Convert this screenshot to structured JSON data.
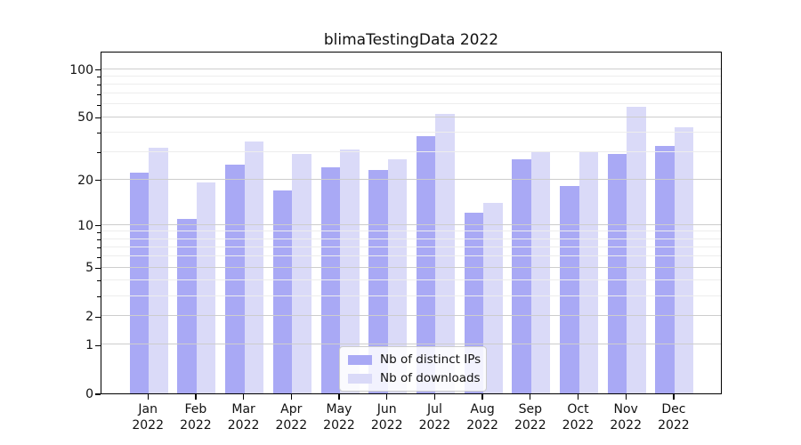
{
  "title": "blimaTestingData 2022",
  "chart_data": {
    "type": "bar",
    "title": "blimaTestingData 2022",
    "xlabel": "",
    "ylabel": "",
    "y_scale": "log(1+x)",
    "categories": [
      "Jan",
      "Feb",
      "Mar",
      "Apr",
      "May",
      "Jun",
      "Jul",
      "Aug",
      "Sep",
      "Oct",
      "Nov",
      "Dec"
    ],
    "x_year": "2022",
    "series": [
      {
        "name": "Nb of distinct IPs",
        "color": "#a9a9f5",
        "values": [
          22,
          11,
          25,
          17,
          24,
          23,
          38,
          12,
          27,
          18,
          29,
          33
        ]
      },
      {
        "name": "Nb of downloads",
        "color": "#dadaf8",
        "values": [
          32,
          19,
          35,
          29,
          31,
          27,
          52,
          14,
          30,
          30,
          58,
          43
        ]
      }
    ],
    "y_ticks": [
      100,
      50,
      20,
      10,
      5,
      2,
      1,
      0
    ],
    "major_gridlines": [
      1,
      2,
      5,
      10,
      20,
      50,
      100
    ],
    "minor_gridlines": [
      3,
      4,
      6,
      7,
      8,
      9,
      30,
      40,
      60,
      70,
      80,
      90
    ],
    "grid": true,
    "legend_position": "lower center inside plot"
  }
}
